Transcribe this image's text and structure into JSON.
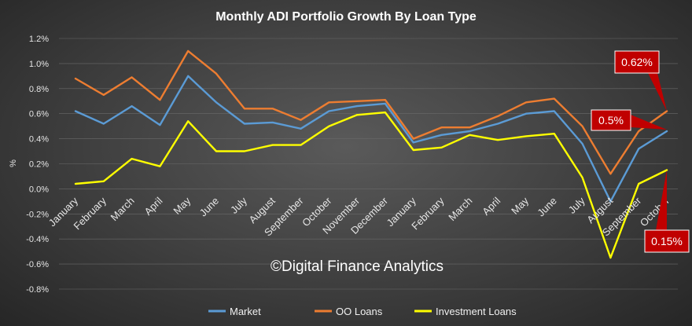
{
  "chart_data": {
    "type": "line",
    "title": "Monthly ADI Portfolio Growth By Loan Type",
    "ylabel": "%",
    "xlabel": "",
    "ylim": [
      -0.8,
      1.2
    ],
    "yticks": [
      "1.2%",
      "1.0%",
      "0.8%",
      "0.6%",
      "0.4%",
      "0.2%",
      "0.0%",
      "-0.2%",
      "-0.4%",
      "-0.6%",
      "-0.8%"
    ],
    "grid": true,
    "legend": "bottom",
    "categories": [
      "January",
      "February",
      "March",
      "April",
      "May",
      "June",
      "July",
      "August",
      "September",
      "October",
      "November",
      "December",
      "January",
      "February",
      "March",
      "April",
      "May",
      "June",
      "July",
      "August",
      "September",
      "October"
    ],
    "series": [
      {
        "name": "Market",
        "color": "#5b9bd5",
        "values": [
          0.62,
          0.52,
          0.66,
          0.51,
          0.9,
          0.69,
          0.52,
          0.53,
          0.48,
          0.62,
          0.66,
          0.68,
          0.37,
          0.43,
          0.46,
          0.52,
          0.6,
          0.62,
          0.36,
          -0.1,
          0.32,
          0.46
        ]
      },
      {
        "name": "OO Loans",
        "color": "#ed7d31",
        "values": [
          0.88,
          0.75,
          0.89,
          0.71,
          1.1,
          0.92,
          0.64,
          0.64,
          0.55,
          0.69,
          0.7,
          0.71,
          0.4,
          0.49,
          0.49,
          0.58,
          0.69,
          0.72,
          0.5,
          0.12,
          0.46,
          0.62
        ]
      },
      {
        "name": "Investment Loans",
        "color": "#ffff00",
        "values": [
          0.04,
          0.06,
          0.24,
          0.18,
          0.54,
          0.3,
          0.3,
          0.35,
          0.35,
          0.5,
          0.59,
          0.61,
          0.31,
          0.33,
          0.43,
          0.39,
          0.42,
          0.44,
          0.09,
          -0.55,
          0.04,
          0.15
        ]
      }
    ],
    "annotations": [
      {
        "text": "0.62%",
        "series": 1,
        "point": 21
      },
      {
        "text": "0.5%",
        "series": 0,
        "point": 21
      },
      {
        "text": "0.15%",
        "series": 2,
        "point": 21
      }
    ]
  },
  "watermark": "©Digital Finance Analytics"
}
